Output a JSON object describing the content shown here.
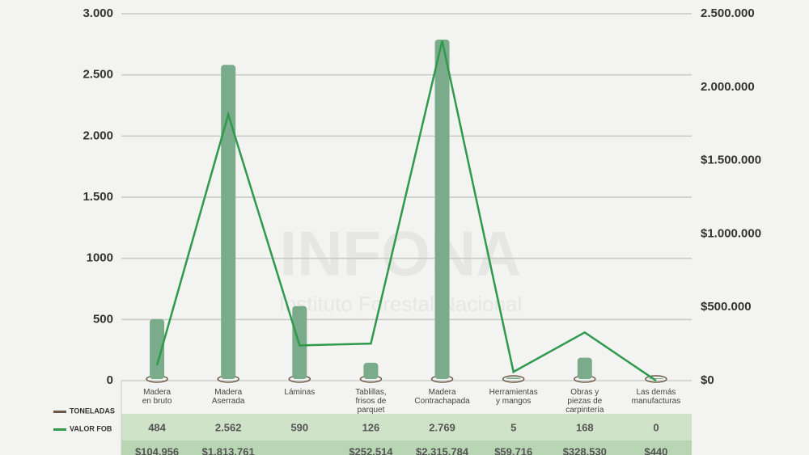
{
  "chart_data": {
    "type": "bar_line",
    "watermark": "INFONA",
    "watermark_subtitle": "Instituto Forestal Nacional",
    "categories": [
      "Madera\nen bruto",
      "Madera\nAserrada",
      "Láminas",
      "Tablillas,\nfrisos de\nparquet",
      "Madera\nContrachapada",
      "Herramientas\ny mangos",
      "Obras y\npiezas de\ncarpintería",
      "Las demás\nmanufacturas"
    ],
    "series": [
      {
        "name": "TONELADAS",
        "color": "#7aab8a",
        "swatch": "#6b5a45",
        "values": [
          484,
          2562,
          590,
          126,
          2769,
          5,
          168,
          0
        ],
        "value_labels": [
          "484",
          "2.562",
          "590",
          "126",
          "2.769",
          "5",
          "168",
          "0"
        ]
      },
      {
        "name": "VALOR FOB",
        "color": "#2f9a4c",
        "swatch": "#2f9a4c",
        "axis": "y2",
        "values": [
          104956,
          1813761,
          240000,
          252514,
          2315784,
          59716,
          328530,
          440
        ],
        "value_labels": [
          "$104.956",
          "$1.813.761",
          null,
          "$252.514",
          "$2.315.784",
          "$59.716",
          "$328.530",
          "$440"
        ]
      }
    ],
    "ylim": [
      0,
      3000
    ],
    "yticks": [
      0,
      500,
      1000,
      {
        "value": 1500,
        "label": "1.500"
      },
      {
        "value": 2000,
        "label": "2.000"
      },
      {
        "value": 2500,
        "label": "2.500"
      },
      {
        "value": 3000,
        "label": "3.000"
      }
    ],
    "y2lim": [
      0,
      2500000
    ],
    "y2ticks": [
      {
        "value": 0,
        "label": "$0"
      },
      {
        "value": 500000,
        "label": "$500.000"
      },
      {
        "value": 1000000,
        "label": "$1.000.000"
      },
      {
        "value": 1500000,
        "label": "$1.500.000"
      },
      {
        "value": 2000000,
        "label": "2.000.000"
      },
      {
        "value": 2500000,
        "label": "2.500.000"
      }
    ],
    "grid": true
  }
}
